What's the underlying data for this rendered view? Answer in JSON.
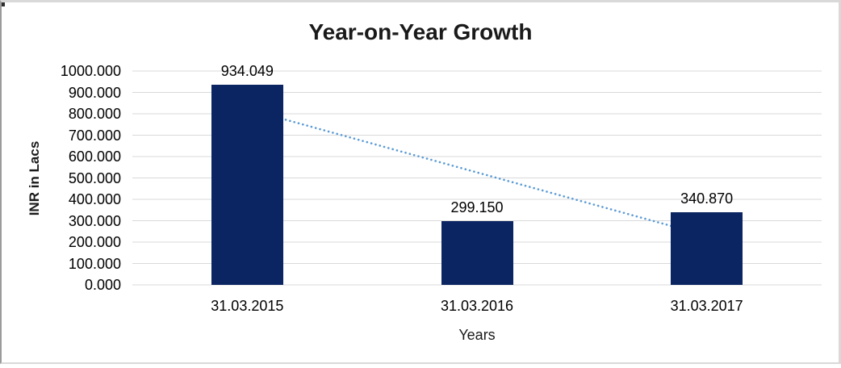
{
  "window": {
    "background": "#ffffff",
    "frame_border_color": "#d9d9d9",
    "frame_left_border_color": "#9b9b9b"
  },
  "chart_data": {
    "type": "bar",
    "title": "Year-on-Year Growth",
    "xlabel": "Years",
    "ylabel": "INR in Lacs",
    "categories": [
      "31.03.2015",
      "31.03.2016",
      "31.03.2017"
    ],
    "values": [
      934.049,
      299.15,
      340.87
    ],
    "data_labels": [
      "934.049",
      "299.150",
      "340.870"
    ],
    "y_ticks": [
      "1000.000",
      "900.000",
      "800.000",
      "700.000",
      "600.000",
      "500.000",
      "400.000",
      "300.000",
      "200.000",
      "100.000",
      "0.000"
    ],
    "y_tick_values": [
      1000,
      900,
      800,
      700,
      600,
      500,
      400,
      300,
      200,
      100,
      0
    ],
    "ylim": [
      0,
      1000
    ],
    "grid": "horizontal",
    "grid_color": "#d9d9d9",
    "legend": "none",
    "bar_color": "#0b2562",
    "text_color": "#000000",
    "title_color": "#1a1a1a",
    "trendline": {
      "type": "linear",
      "style": "dotted",
      "color": "#5b9bd5",
      "start": {
        "category_index": 0,
        "value": 822
      },
      "end": {
        "category_index": 2,
        "value": 230
      }
    }
  }
}
